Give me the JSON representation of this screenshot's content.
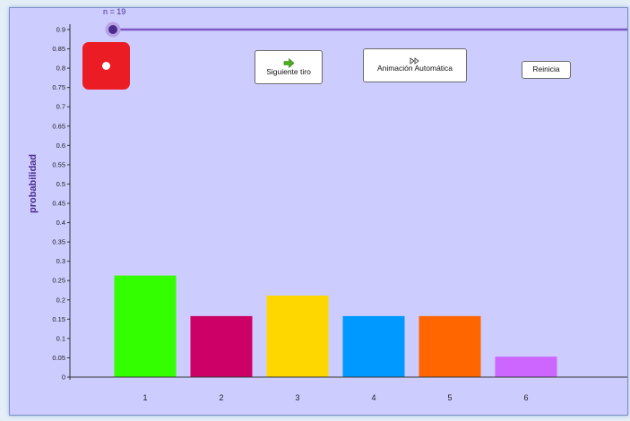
{
  "slider": {
    "label": "n = 19",
    "value": 19
  },
  "die": {
    "face": 1,
    "color": "#ec1c24"
  },
  "buttons": {
    "next": {
      "label": "Siguiente tiro",
      "icon": "green-arrow-icon"
    },
    "auto": {
      "label": "Animación Automática",
      "icon": "fast-forward-icon"
    },
    "reset": {
      "label": "Reinicia"
    }
  },
  "chart_data": {
    "type": "bar",
    "ylabel": "probabilidad",
    "categories": [
      "1",
      "2",
      "3",
      "4",
      "5",
      "6"
    ],
    "values": [
      0.263,
      0.158,
      0.211,
      0.158,
      0.158,
      0.053
    ],
    "colors": [
      "#33ff00",
      "#cc0066",
      "#ffd700",
      "#0099ff",
      "#ff6600",
      "#cc66ff"
    ],
    "ylim": [
      0,
      0.9
    ],
    "yticks": [
      "0",
      "0.05",
      "0.1",
      "0.15",
      "0.2",
      "0.25",
      "0.3",
      "0.35",
      "0.4",
      "0.45",
      "0.5",
      "0.55",
      "0.6",
      "0.65",
      "0.7",
      "0.75",
      "0.8",
      "0.85",
      "0.9"
    ],
    "grid": false
  },
  "colors": {
    "background": "#ccccff",
    "accent": "#4a2c8f",
    "slider": "#7e57c2"
  }
}
